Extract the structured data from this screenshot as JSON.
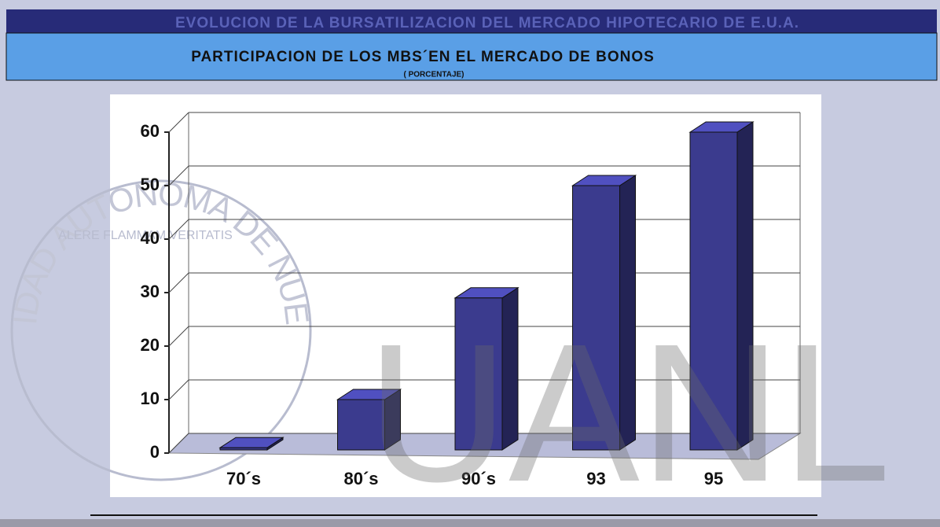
{
  "chart_data": {
    "type": "bar3d",
    "title": "EVOLUCION DE LA BURSATILIZACION DEL MERCADO HIPOTECARIO DE E.U.A.",
    "subtitle": "PARTICIPACION DE LOS MBS´EN EL MERCADO DE BONOS",
    "unit_label": "( PORCENTAJE)",
    "categories": [
      "70´s",
      "80´s",
      "90´s",
      "93",
      "95"
    ],
    "values": [
      1,
      10,
      29,
      50,
      60
    ],
    "color": "#3b3b8e",
    "ylim": [
      0,
      60
    ],
    "yticks": [
      0,
      10,
      20,
      30,
      40,
      50,
      60
    ],
    "grid": true,
    "watermark": "UANL",
    "seal_text": "UNIVERSIDAD AUTONOMA DE NUEVO LEON",
    "seal_motto": "ALERE FLAMMAM VERITATIS"
  }
}
